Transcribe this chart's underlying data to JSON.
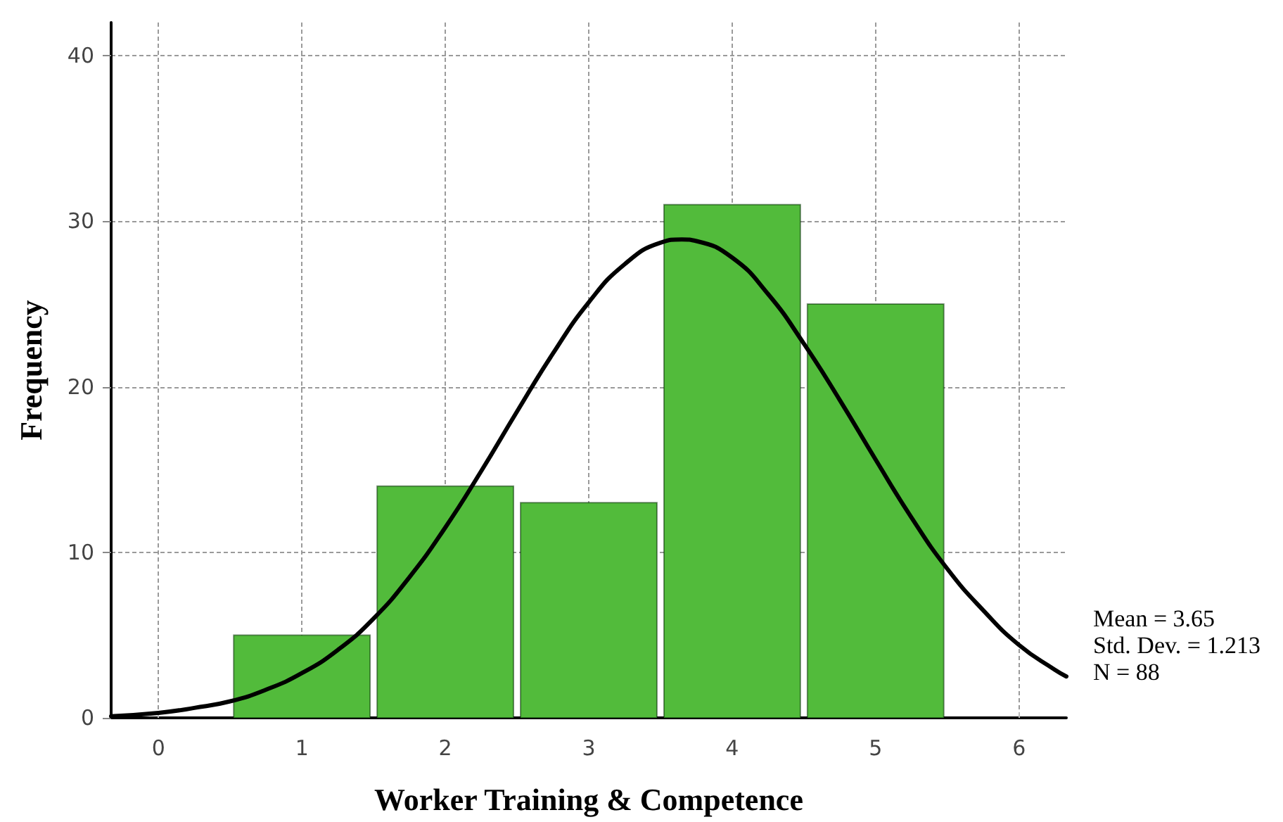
{
  "chart_data": {
    "type": "histogram",
    "xlabel": "Worker Training & Competence",
    "ylabel": "Frequency",
    "annotations": [
      "Mean = 3.65",
      "Std. Dev. = 1.213",
      "N = 88"
    ],
    "series": [
      {
        "type": "histogram",
        "color": "#52bb3b",
        "bins": [
          0.5,
          1.5,
          2.5,
          3.5,
          4.5,
          5.5
        ],
        "values": [
          5,
          14,
          13,
          31,
          25
        ]
      },
      {
        "type": "line",
        "color": "#000000",
        "x": [
          -0.33,
          0,
          0.25,
          0.5,
          0.75,
          1,
          1.25,
          1.5,
          1.75,
          2,
          2.25,
          2.5,
          2.75,
          3,
          3.25,
          3.5,
          3.65,
          3.75,
          4,
          4.25,
          4.5,
          4.75,
          5,
          5.25,
          5.5,
          5.75,
          6,
          6.25,
          6.33
        ],
        "values": [
          0.1,
          0.3,
          0.6,
          1.0,
          1.7,
          2.7,
          4.1,
          6.0,
          8.5,
          11.5,
          14.9,
          18.5,
          22.0,
          25.1,
          27.4,
          28.7,
          28.9,
          28.8,
          27.8,
          25.6,
          22.6,
          19.2,
          15.6,
          12.1,
          9.0,
          6.5,
          4.4,
          2.9,
          2.5
        ]
      }
    ],
    "xlim": [
      -0.33,
      6.33
    ],
    "xticks": [
      0,
      1,
      2,
      3,
      4,
      5,
      6
    ],
    "ylim": [
      0,
      42
    ],
    "yticks": [
      0,
      10,
      20,
      30,
      40
    ],
    "grid": true
  }
}
